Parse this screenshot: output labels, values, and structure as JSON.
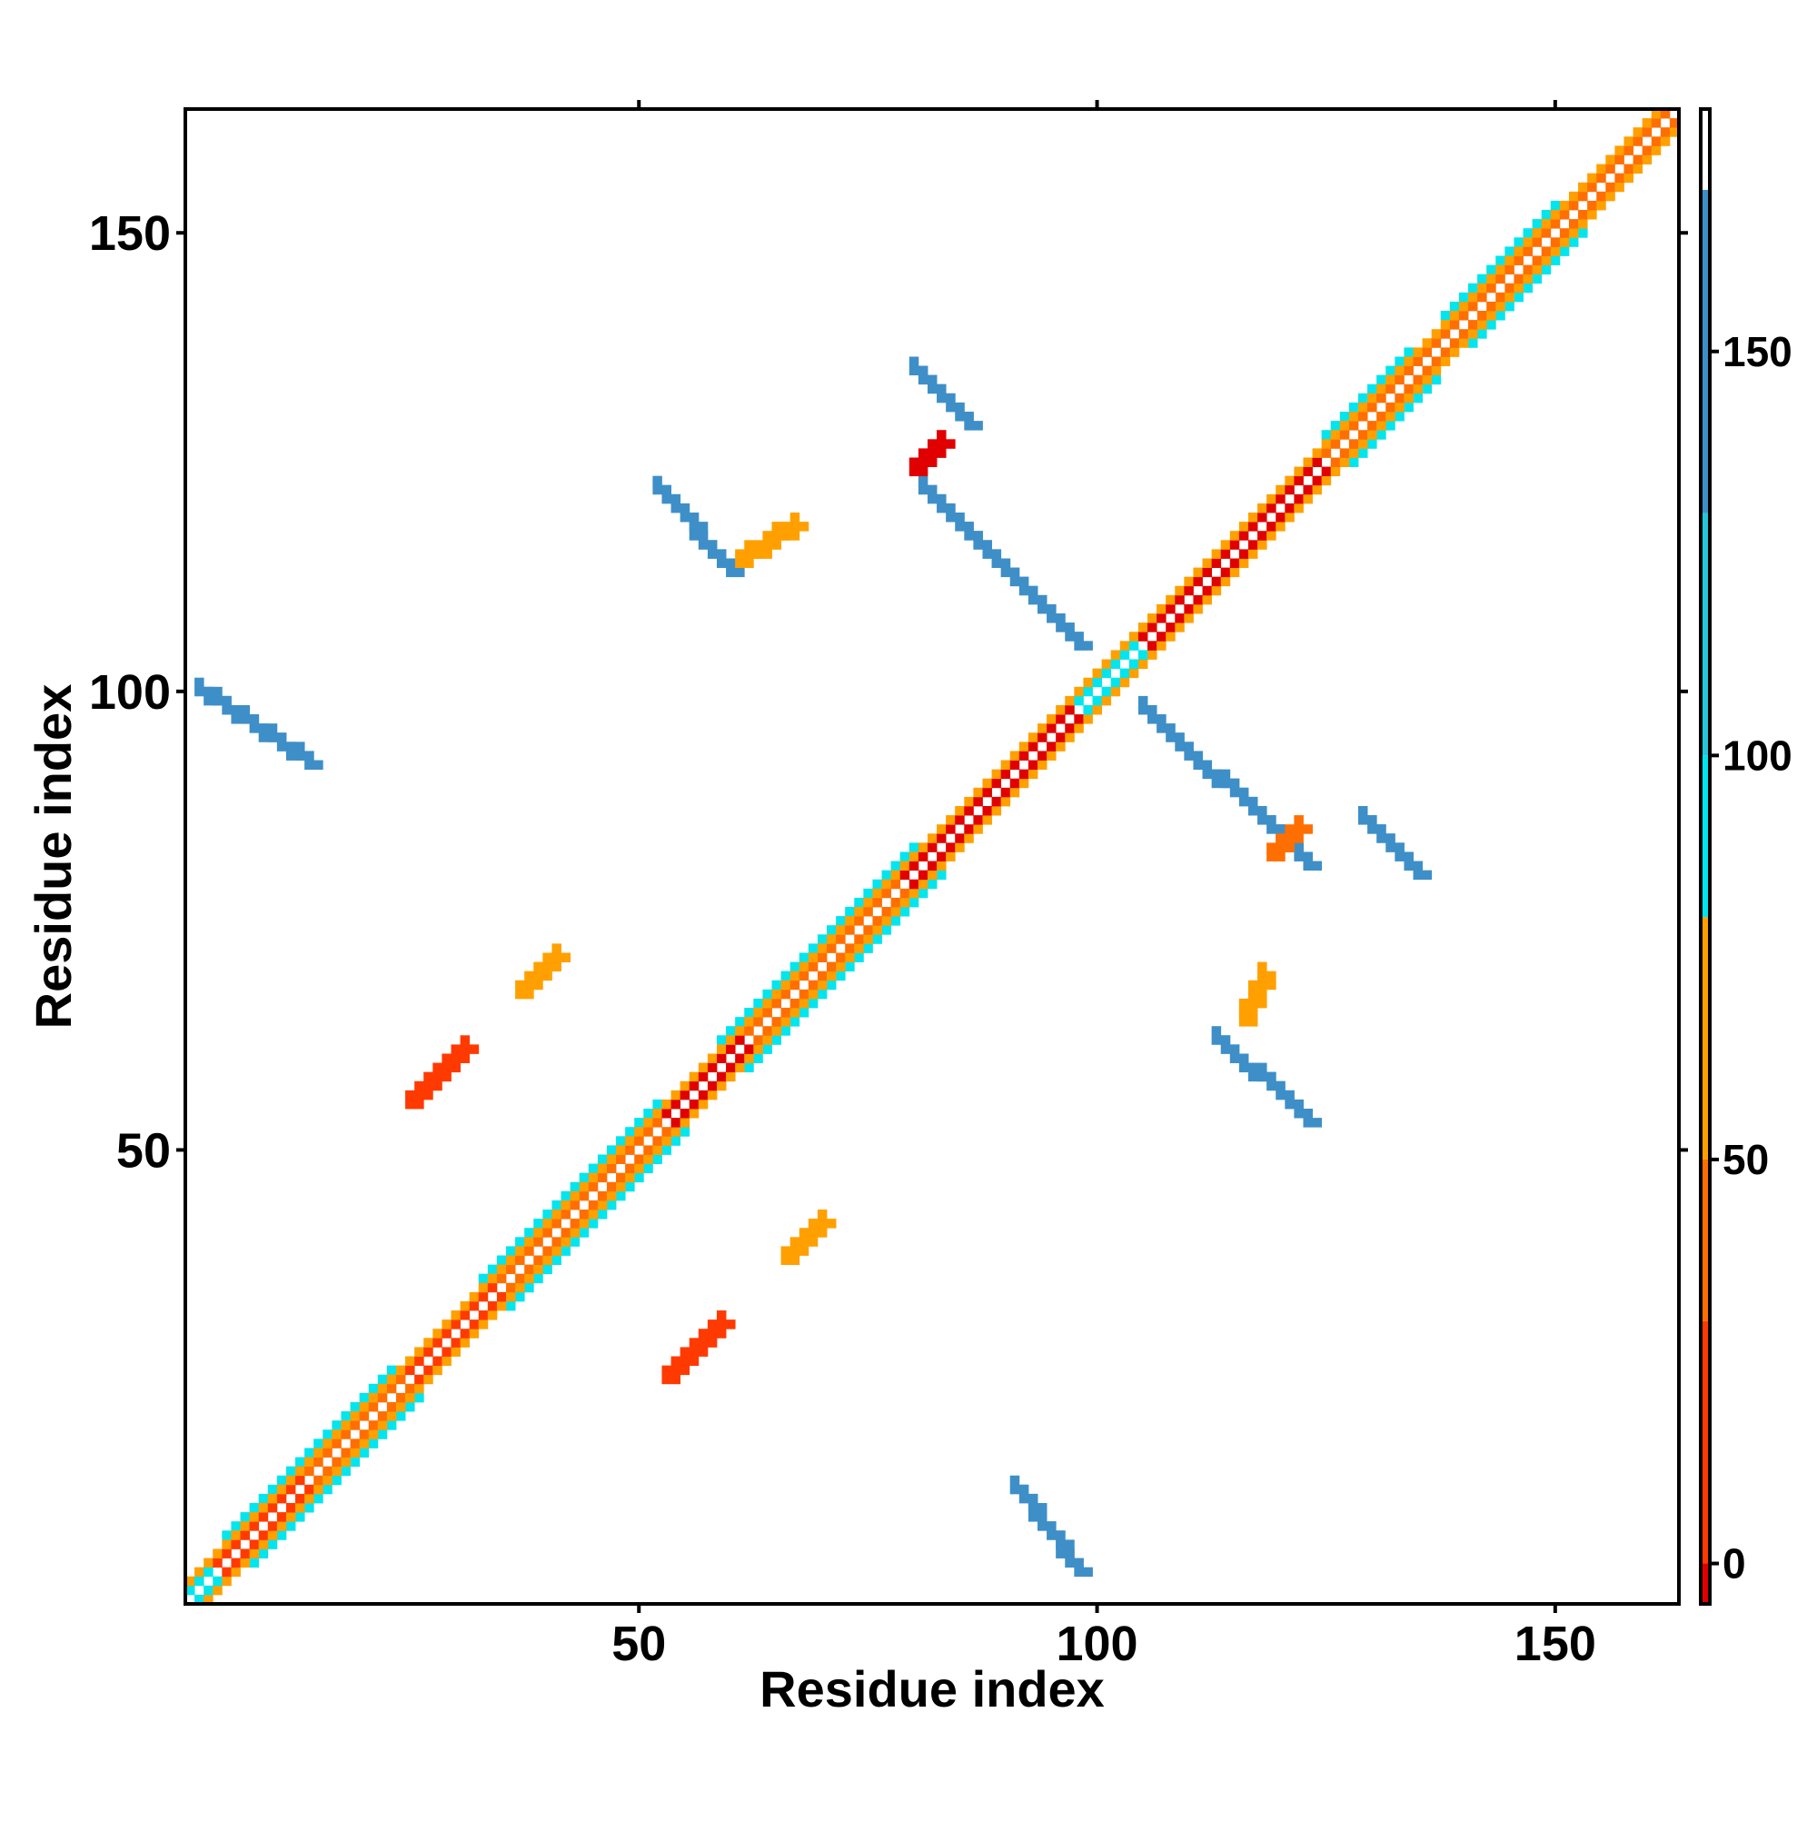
{
  "chart_data": {
    "type": "heatmap",
    "xlabel": "Residue index",
    "ylabel": "Residue index",
    "xlim": [
      1,
      163
    ],
    "ylim": [
      1,
      163
    ],
    "x_ticks": [
      50,
      100,
      150
    ],
    "y_ticks": [
      50,
      100,
      150
    ],
    "colorbar": {
      "min": -5,
      "max": 180,
      "ticks": [
        0,
        50,
        100,
        150
      ],
      "bands": [
        {
          "from": -5,
          "to": 0,
          "color": "#e00000"
        },
        {
          "from": 0,
          "to": 30,
          "color": "#ff3a00"
        },
        {
          "from": 30,
          "to": 50,
          "color": "#ff6e00"
        },
        {
          "from": 50,
          "to": 80,
          "color": "#ffa000"
        },
        {
          "from": 80,
          "to": 100,
          "color": "#00e5ee"
        },
        {
          "from": 100,
          "to": 130,
          "color": "#26c6da"
        },
        {
          "from": 130,
          "to": 170,
          "color": "#3e8fc8"
        },
        {
          "from": 170,
          "to": 180,
          "color": "#ffffff"
        }
      ]
    },
    "diagonal": {
      "bands": [
        {
          "from": 1,
          "to": 3,
          "color": "#00e5ee"
        },
        {
          "from": 4,
          "to": 13,
          "color": "#ff3a00"
        },
        {
          "from": 14,
          "to": 24,
          "color": "#ff6e00"
        },
        {
          "from": 25,
          "to": 34,
          "color": "#ff3a00"
        },
        {
          "from": 35,
          "to": 52,
          "color": "#ff6e00"
        },
        {
          "from": 53,
          "to": 61,
          "color": "#e00000"
        },
        {
          "from": 62,
          "to": 78,
          "color": "#ff6e00"
        },
        {
          "from": 79,
          "to": 97,
          "color": "#e00000"
        },
        {
          "from": 98,
          "to": 104,
          "color": "#00e5ee"
        },
        {
          "from": 105,
          "to": 124,
          "color": "#e00000"
        },
        {
          "from": 125,
          "to": 136,
          "color": "#ff6e00"
        },
        {
          "from": 137,
          "to": 163,
          "color": "#ff6e00"
        }
      ],
      "off_diagonal_color": "#ffa000",
      "halo": [
        {
          "from": 5,
          "to": 23,
          "color": "#00e5ee"
        },
        {
          "from": 33,
          "to": 52,
          "color": "#00e5ee"
        },
        {
          "from": 59,
          "to": 80,
          "color": "#00e5ee"
        },
        {
          "from": 125,
          "to": 134,
          "color": "#00e5ee"
        },
        {
          "from": 138,
          "to": 150,
          "color": "#00e5ee"
        }
      ]
    },
    "contact_regions": [
      {
        "x": [
          2,
          14
        ],
        "y": [
          100,
          92
        ],
        "color": "#3e8fc8"
      },
      {
        "x": [
          91,
          98
        ],
        "y": [
          13,
          4
        ],
        "color": "#3e8fc8"
      },
      {
        "x": [
          52,
          60
        ],
        "y": [
          122,
          113
        ],
        "color": "#3e8fc8"
      },
      {
        "x": [
          80,
          86
        ],
        "y": [
          135,
          129
        ],
        "color": "#3e8fc8"
      },
      {
        "x": [
          81,
          98
        ],
        "y": [
          122,
          105
        ],
        "color": "#3e8fc8"
      },
      {
        "x": [
          105,
          123
        ],
        "y": [
          98,
          81
        ],
        "color": "#3e8fc8"
      },
      {
        "x": [
          113,
          123
        ],
        "y": [
          62,
          53
        ],
        "color": "#3e8fc8"
      },
      {
        "x": [
          129,
          135
        ],
        "y": [
          86,
          80
        ],
        "color": "#3e8fc8"
      },
      {
        "x": [
          25,
          31
        ],
        "y": [
          55,
          61
        ],
        "color": "#ff3a00"
      },
      {
        "x": [
          53,
          59
        ],
        "y": [
          25,
          31
        ],
        "color": "#ff3a00"
      },
      {
        "x": [
          80,
          83
        ],
        "y": [
          124,
          127
        ],
        "color": "#e00000"
      },
      {
        "x": [
          61,
          67
        ],
        "y": [
          114,
          118
        ],
        "color": "#ffa000"
      },
      {
        "x": [
          119,
          122
        ],
        "y": [
          82,
          85
        ],
        "color": "#ff6e00"
      },
      {
        "x": [
          116,
          118
        ],
        "y": [
          64,
          69
        ],
        "color": "#ffa000"
      },
      {
        "x": [
          37,
          41
        ],
        "y": [
          67,
          71
        ],
        "color": "#ffa000"
      },
      {
        "x": [
          66,
          70
        ],
        "y": [
          38,
          42
        ],
        "color": "#ffa000"
      }
    ]
  }
}
